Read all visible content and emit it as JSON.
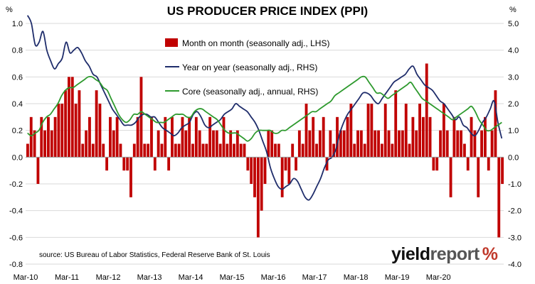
{
  "chart_data": {
    "type": "bar+line",
    "title": "US PRODUCER PRICE INDEX (PPI)",
    "left_unit": "%",
    "right_unit": "%",
    "source": "source: US Bureau of Labor Statistics, Federal Reserve Bank of St. Louis",
    "x_tick_labels": [
      "Mar-10",
      "Mar-11",
      "Mar-12",
      "Mar-13",
      "Mar-14",
      "Mar-15",
      "Mar-16",
      "Mar-17",
      "Mar-18",
      "Mar-19",
      "Mar-20"
    ],
    "y_left": {
      "range": [
        -0.8,
        1.0
      ],
      "ticks": [
        "1.0",
        "0.8",
        "0.6",
        "0.4",
        "0.2",
        "0.0",
        "-0.2",
        "-0.4",
        "-0.6",
        "-0.8"
      ]
    },
    "y_right": {
      "range": [
        -4.0,
        5.0
      ],
      "ticks": [
        "5.0",
        "4.0",
        "3.0",
        "2.0",
        "1.0",
        "0.0",
        "-1.0",
        "-2.0",
        "-3.0",
        "-4.0"
      ]
    },
    "legend": [
      {
        "label": "Month on month (seasonally adj., LHS)",
        "color": "#c00000",
        "kind": "bar"
      },
      {
        "label": "Year on year (seasonally adj., RHS)",
        "color": "#1f2d6b",
        "kind": "line"
      },
      {
        "label": "Core (seasonally adj., annual, RHS)",
        "color": "#2e9a2e",
        "kind": "line"
      }
    ],
    "series": [
      {
        "name": "Month on month (seasonally adj., LHS)",
        "axis": "left",
        "values": [
          0.1,
          0.3,
          0.2,
          -0.2,
          0.3,
          0.2,
          0.3,
          0.2,
          0.3,
          0.4,
          0.4,
          0.5,
          0.6,
          0.6,
          0.4,
          0.5,
          0.1,
          0.2,
          0.3,
          0.1,
          0.5,
          0.4,
          0.1,
          -0.1,
          0.3,
          0.2,
          0.3,
          0.1,
          -0.1,
          -0.1,
          -0.3,
          0.1,
          0.3,
          0.6,
          0.1,
          0.1,
          0.3,
          -0.1,
          0.2,
          0.1,
          0.3,
          -0.1,
          0.3,
          0.1,
          0.1,
          0.3,
          0.2,
          0.3,
          0.1,
          0.3,
          0.2,
          0.1,
          0.1,
          0.3,
          0.2,
          0.2,
          0.1,
          0.3,
          0.1,
          0.2,
          0.1,
          0.2,
          0.1,
          0.1,
          -0.1,
          -0.2,
          -0.3,
          -0.6,
          -0.4,
          -0.2,
          0.2,
          0.2,
          0.1,
          0.1,
          -0.3,
          -0.1,
          -0.2,
          0.1,
          -0.1,
          0.2,
          0.1,
          0.4,
          0.2,
          0.3,
          0.1,
          0.2,
          0.3,
          -0.1,
          0.2,
          0.1,
          0.3,
          0.2,
          0.2,
          0.3,
          0.4,
          0.1,
          0.2,
          0.2,
          0.1,
          0.4,
          0.4,
          0.2,
          0.2,
          0.1,
          0.4,
          0.2,
          0.1,
          0.5,
          0.2,
          0.2,
          0.4,
          0.1,
          0.3,
          0.2,
          0.4,
          0.3,
          0.7,
          0.3,
          -0.1,
          -0.1,
          0.2,
          0.4,
          0.2,
          -0.3,
          0.3,
          0.2,
          0.2,
          0.1,
          -0.1,
          0.3,
          0.2,
          -0.3,
          0.2,
          0.3,
          -0.1,
          0.2,
          0.5,
          -0.6,
          -0.2
        ],
        "color": "#c00000"
      },
      {
        "name": "Year on year (seasonally adj., RHS)",
        "axis": "right",
        "values": [
          5.3,
          5.0,
          4.2,
          4.3,
          4.7,
          4.0,
          3.6,
          3.3,
          3.5,
          3.7,
          4.3,
          3.9,
          4.0,
          4.1,
          3.9,
          3.6,
          3.4,
          3.1,
          3.0,
          2.7,
          2.4,
          2.1,
          1.8,
          1.6,
          1.4,
          1.2,
          1.2,
          1.2,
          1.3,
          1.5,
          1.6,
          1.6,
          1.5,
          1.5,
          1.3,
          1.1,
          1.0,
          0.9,
          0.8,
          0.9,
          1.1,
          1.2,
          1.3,
          1.6,
          1.7,
          1.5,
          1.2,
          1.1,
          1.2,
          1.3,
          1.4,
          1.6,
          1.7,
          1.8,
          2.0,
          1.9,
          1.8,
          1.7,
          1.5,
          1.3,
          1.0,
          0.6,
          0.2,
          -0.4,
          -0.8,
          -1.1,
          -1.2,
          -1.1,
          -1.0,
          -0.8,
          -0.9,
          -1.2,
          -1.5,
          -1.6,
          -1.4,
          -1.1,
          -0.8,
          -0.4,
          -0.1,
          0.0,
          0.3,
          0.9,
          1.3,
          1.6,
          1.8,
          2.0,
          2.2,
          2.4,
          2.4,
          2.3,
          2.1,
          2.0,
          2.2,
          2.4,
          2.6,
          2.8,
          2.9,
          3.0,
          3.1,
          3.3,
          3.4,
          3.1,
          2.9,
          2.7,
          2.6,
          2.5,
          2.3,
          2.1,
          2.0,
          1.8,
          1.6,
          1.4,
          1.5,
          1.2,
          1.1,
          0.9,
          0.8,
          1.0,
          1.3,
          1.5,
          1.8,
          2.1,
          1.3,
          0.7
        ],
        "color": "#1f2d6b"
      },
      {
        "name": "Core (seasonally adj., annual, RHS)",
        "axis": "right",
        "values": [
          0.9,
          0.8,
          0.9,
          1.0,
          1.3,
          1.5,
          1.6,
          1.8,
          2.0,
          2.3,
          2.5,
          2.6,
          2.6,
          2.7,
          2.8,
          2.9,
          3.0,
          3.0,
          2.9,
          2.8,
          2.6,
          2.5,
          2.2,
          1.9,
          1.6,
          1.4,
          1.3,
          1.4,
          1.6,
          1.6,
          1.7,
          1.6,
          1.5,
          1.4,
          1.3,
          1.3,
          1.3,
          1.4,
          1.5,
          1.6,
          1.6,
          1.6,
          1.5,
          1.5,
          1.7,
          1.8,
          1.8,
          1.7,
          1.6,
          1.5,
          1.4,
          1.2,
          1.0,
          0.9,
          0.9,
          0.9,
          0.8,
          0.7,
          0.6,
          0.7,
          0.9,
          1.0,
          1.0,
          1.0,
          1.0,
          0.9,
          0.9,
          1.0,
          1.0,
          1.1,
          1.2,
          1.3,
          1.4,
          1.5,
          1.6,
          1.7,
          1.7,
          1.8,
          1.9,
          2.0,
          2.1,
          2.3,
          2.4,
          2.5,
          2.6,
          2.7,
          2.8,
          2.9,
          3.0,
          3.0,
          2.8,
          2.6,
          2.4,
          2.4,
          2.3,
          2.2,
          2.3,
          2.4,
          2.5,
          2.6,
          2.7,
          2.8,
          2.6,
          2.4,
          2.2,
          2.1,
          2.0,
          1.9,
          1.8,
          1.7,
          1.6,
          1.5,
          1.4,
          1.5,
          1.6,
          1.7,
          1.8,
          1.9,
          1.7,
          1.4,
          1.2,
          1.0,
          1.0,
          1.1,
          1.2,
          1.3
        ]
      }
    ],
    "grid": "horizontal"
  }
}
